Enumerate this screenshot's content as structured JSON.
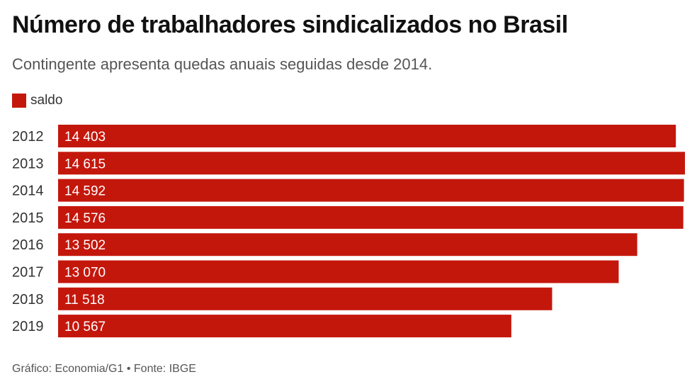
{
  "header": {
    "title": "Número de trabalhadores sindicalizados no Brasil",
    "subtitle": "Contingente apresenta quedas anuais seguidas desde 2014."
  },
  "legend": {
    "label": "saldo",
    "color": "#c4170c"
  },
  "footer": {
    "source": "Gráfico: Economia/G1 • Fonte: IBGE"
  },
  "chart_data": {
    "type": "bar",
    "orientation": "horizontal",
    "title": "Número de trabalhadores sindicalizados no Brasil",
    "subtitle": "Contingente apresenta quedas anuais seguidas desde 2014.",
    "categories": [
      "2012",
      "2013",
      "2014",
      "2015",
      "2016",
      "2017",
      "2018",
      "2019"
    ],
    "series": [
      {
        "name": "saldo",
        "color": "#c4170c",
        "values": [
          14403,
          14615,
          14592,
          14576,
          13502,
          13070,
          11518,
          10567
        ],
        "labels": [
          "14 403",
          "14 615",
          "14 592",
          "14 576",
          "13 502",
          "13 070",
          "11 518",
          "10 567"
        ]
      }
    ],
    "xlim": [
      0,
      14615
    ],
    "legend_position": "top-left",
    "grid": false
  }
}
